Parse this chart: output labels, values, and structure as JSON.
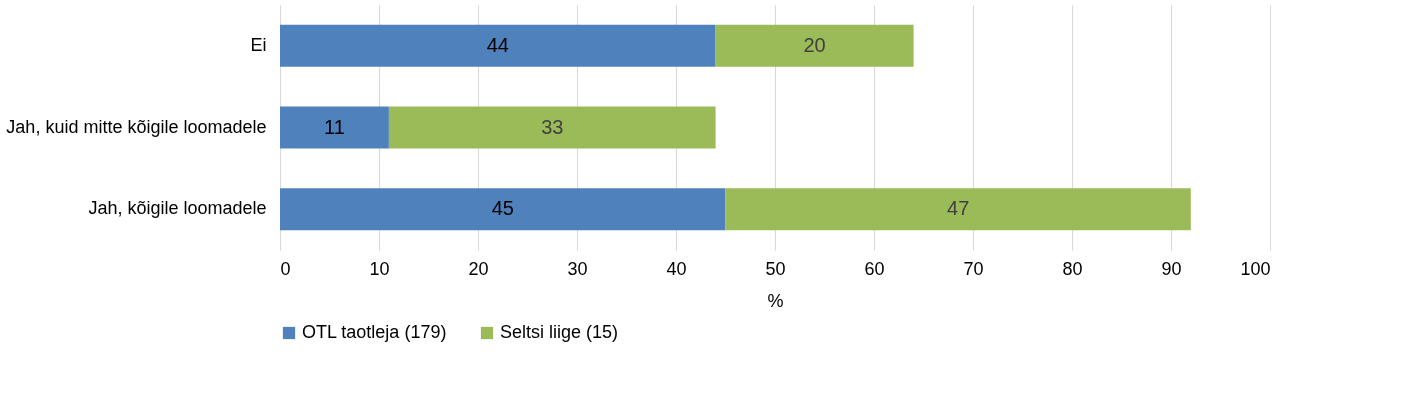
{
  "chart_data": {
    "type": "bar",
    "orientation": "horizontal",
    "stacked": true,
    "xlabel": "%",
    "categories": [
      "Ei",
      "Jah, kuid mitte kõigile loomadele",
      "Jah, kõigile loomadele"
    ],
    "series": [
      {
        "name": "OTL taotleja (179)",
        "color": "#4f81bd",
        "values": [
          44,
          11,
          45
        ]
      },
      {
        "name": "Seltsi liige (15)",
        "color": "#9bbb59",
        "values": [
          20,
          33,
          47
        ]
      }
    ],
    "xlim": [
      0,
      100
    ],
    "xticks": [
      0,
      10,
      20,
      30,
      40,
      50,
      60,
      70,
      80,
      90,
      100
    ],
    "grid": "x",
    "legend": "bottom",
    "data_labels": true
  }
}
